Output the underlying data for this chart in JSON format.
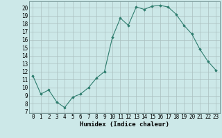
{
  "x": [
    0,
    1,
    2,
    3,
    4,
    5,
    6,
    7,
    8,
    9,
    10,
    11,
    12,
    13,
    14,
    15,
    16,
    17,
    18,
    19,
    20,
    21,
    22,
    23
  ],
  "y": [
    11.5,
    9.2,
    9.7,
    8.2,
    7.5,
    8.8,
    9.2,
    10.0,
    11.2,
    12.0,
    16.3,
    18.7,
    17.8,
    20.1,
    19.8,
    20.2,
    20.3,
    20.1,
    19.2,
    17.8,
    16.7,
    14.8,
    13.3,
    12.2
  ],
  "xlabel": "Humidex (Indice chaleur)",
  "ylabel_ticks": [
    7,
    8,
    9,
    10,
    11,
    12,
    13,
    14,
    15,
    16,
    17,
    18,
    19,
    20
  ],
  "ylim": [
    6.8,
    20.8
  ],
  "xlim": [
    -0.5,
    23.5
  ],
  "line_color": "#2e7d6e",
  "marker": "D",
  "marker_size": 1.8,
  "bg_color": "#cce8e8",
  "grid_color": "#aabfbf",
  "font_size_label": 6.5,
  "font_size_tick": 5.5
}
